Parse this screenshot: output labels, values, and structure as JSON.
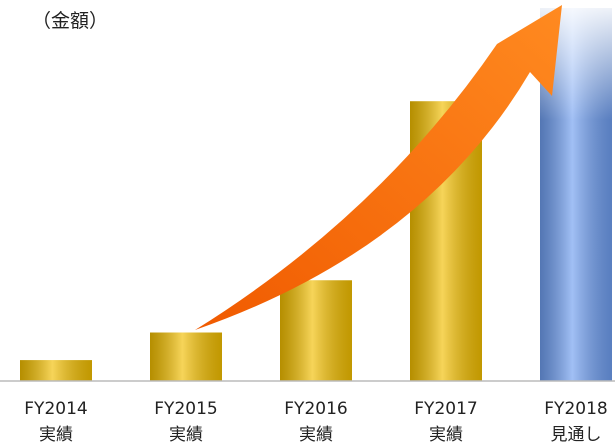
{
  "chart_data": {
    "type": "bar",
    "title": "（金額）",
    "categories": [
      "FY2014\n実績",
      "FY2015\n実績",
      "FY2016\n実績",
      "FY2017\n実績",
      "FY2018\n見通し"
    ],
    "values": [
      5.6,
      13,
      27,
      75,
      100
    ],
    "colors": [
      "#f2be00",
      "#f2be00",
      "#f2be00",
      "#f2be00",
      "#6f9ef0"
    ],
    "ylim": [
      0,
      100
    ]
  }
}
